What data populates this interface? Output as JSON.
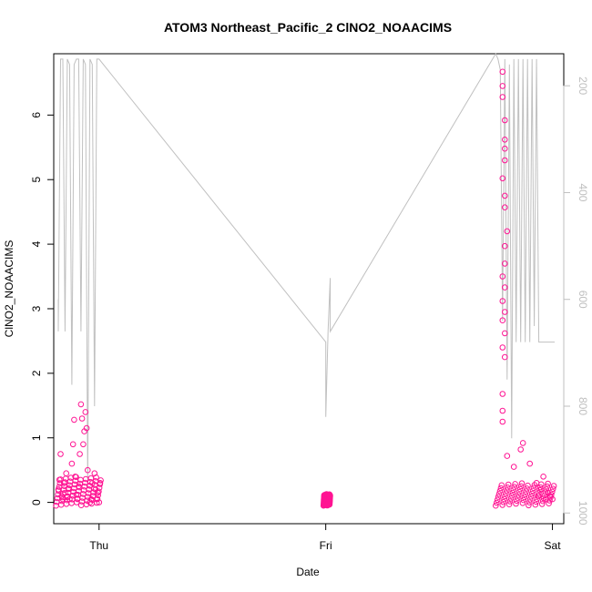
{
  "chart_data": {
    "type": "scatter",
    "title": "ATOM3 Northeast_Pacific_2 ClNO2_NOAACIMS",
    "xlabel": "Date",
    "ylabel": "ClNO2_NOAACIMS",
    "x_ticks": [
      "Thu",
      "Fri",
      "Sat"
    ],
    "ylim": [
      -0.33,
      6.95
    ],
    "y_ticks": [
      0,
      1,
      2,
      3,
      4,
      5,
      6
    ],
    "y2lim": [
      1020,
      140
    ],
    "y2_reversed": true,
    "y2_ticks": [
      200,
      400,
      600,
      800,
      1000
    ],
    "xlim_days": [
      -0.2,
      2.05
    ],
    "grid": false,
    "series": [
      {
        "marker": "open-circle",
        "color": "#ff1493",
        "x_days": [
          -0.18,
          -0.175,
          -0.17,
          -0.165,
          -0.16,
          -0.155,
          -0.15,
          -0.145,
          -0.14,
          -0.135,
          -0.13,
          -0.12,
          -0.115,
          -0.11,
          -0.105,
          -0.1,
          -0.095,
          -0.09,
          -0.085,
          -0.08,
          -0.075,
          -0.07,
          -0.065,
          -0.06,
          -0.055,
          -0.05,
          -0.045,
          -0.04,
          -0.035,
          -0.03,
          -0.025,
          -0.02,
          -0.015,
          -0.01,
          -0.005,
          0.0,
          0.005,
          1.0,
          1.01,
          2.0,
          1.93,
          1.94,
          1.95,
          1.96,
          1.97,
          1.98,
          1.99
        ],
        "y": [
          0.2,
          0.35,
          0.75,
          0.1,
          0.05,
          0.3,
          0.15,
          0.45,
          0.08,
          0.22,
          0.05,
          0.6,
          0.9,
          1.28,
          0.4,
          0.12,
          0.05,
          0.25,
          0.75,
          1.52,
          1.3,
          0.9,
          1.1,
          1.4,
          1.15,
          0.5,
          0.2,
          0.0,
          0.05,
          0.3,
          0.1,
          0.45,
          0.2,
          0.05,
          0.15,
          0.0,
          0.3,
          0.05,
          0.1,
          0.05,
          0.3,
          0.1,
          0.2,
          0.4,
          0.05,
          0.15,
          0.1
        ],
        "points_y_extra": [
          [
            1.78,
            6.67
          ],
          [
            1.78,
            6.45
          ],
          [
            1.78,
            6.28
          ],
          [
            1.79,
            5.92
          ],
          [
            1.79,
            5.62
          ],
          [
            1.79,
            5.48
          ],
          [
            1.79,
            5.3
          ],
          [
            1.78,
            5.02
          ],
          [
            1.79,
            4.75
          ],
          [
            1.79,
            4.57
          ],
          [
            1.8,
            4.2
          ],
          [
            1.79,
            3.97
          ],
          [
            1.79,
            3.7
          ],
          [
            1.78,
            3.5
          ],
          [
            1.79,
            3.33
          ],
          [
            1.78,
            3.12
          ],
          [
            1.79,
            2.95
          ],
          [
            1.78,
            2.82
          ],
          [
            1.79,
            2.62
          ],
          [
            1.78,
            2.4
          ],
          [
            1.79,
            2.25
          ],
          [
            1.78,
            1.68
          ],
          [
            1.78,
            1.42
          ],
          [
            1.78,
            1.25
          ],
          [
            1.87,
            0.92
          ],
          [
            1.86,
            0.82
          ],
          [
            1.8,
            0.72
          ],
          [
            1.83,
            0.55
          ],
          [
            1.9,
            0.6
          ]
        ]
      },
      {
        "name": "",
        "color": "#c0c0c0",
        "axis": "right",
        "x_days": [
          -0.18,
          -0.18,
          -0.17,
          -0.16,
          -0.15,
          -0.14,
          -0.13,
          -0.12,
          -0.11,
          -0.1,
          -0.09,
          -0.08,
          -0.07,
          -0.06,
          -0.05,
          -0.04,
          -0.03,
          -0.02,
          -0.01,
          0.0,
          1.0,
          1.0,
          1.01,
          1.02,
          1.02,
          1.75,
          1.76,
          1.77,
          1.78,
          1.79,
          1.8,
          1.81,
          1.82,
          1.83,
          1.84,
          1.85,
          1.86,
          1.87,
          1.88,
          1.89,
          1.9,
          1.91,
          1.92,
          1.93,
          1.94,
          1.95,
          1.96,
          1.97,
          1.98,
          1.99,
          2.0,
          2.01
        ],
        "y_pressure": [
          600,
          660,
          150,
          150,
          660,
          150,
          160,
          760,
          160,
          150,
          150,
          660,
          150,
          160,
          950,
          150,
          160,
          800,
          150,
          150,
          680,
          820,
          660,
          560,
          660,
          1.0,
          150,
          170,
          640,
          150,
          750,
          160,
          860,
          150,
          680,
          150,
          680,
          150,
          680,
          150,
          680,
          150,
          650,
          150,
          680,
          680,
          680,
          680,
          680,
          680,
          680,
          680
        ]
      }
    ]
  }
}
